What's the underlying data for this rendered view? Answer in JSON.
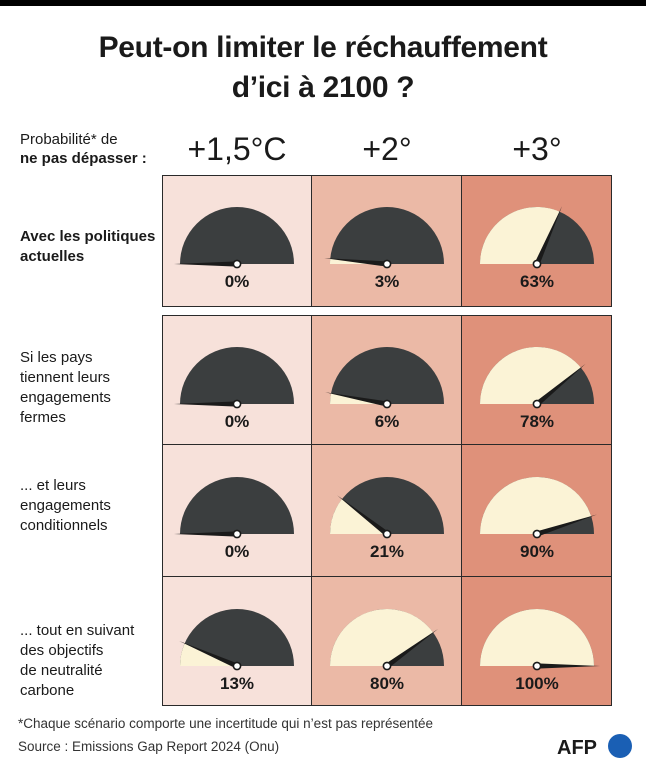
{
  "title_line1": "Peut-on limiter le réchauffement",
  "title_line2": "d’ici à 2100 ?",
  "prob_label_line1": "Probabilité* de",
  "prob_label_line2": "ne pas dépasser :",
  "footnote": "*Chaque scénario comporte une incertitude qui n’est pas représentée",
  "source": "Source : Emissions Gap Report 2024 (Onu)",
  "logo_text": "AFP",
  "colors": {
    "col1_bg": "#f7e1da",
    "col2_bg": "#ebb9a6",
    "col3_bg": "#df917a",
    "gauge_dark": "#3b3e3f",
    "gauge_light": "#fbf3d6",
    "logo_blue": "#1a5fb4"
  },
  "chart_data": {
    "type": "gauge-grid",
    "columns": [
      "+1,5°C",
      "+2°",
      "+3°"
    ],
    "rows": [
      {
        "label_lines": [
          "Avec les politiques",
          "actuelles"
        ],
        "bold": true,
        "values": [
          0,
          3,
          63
        ],
        "labels": [
          "0%",
          "3%",
          "63%"
        ]
      },
      {
        "label_lines": [
          "Si les pays",
          "tiennent leurs",
          "engagements",
          "fermes"
        ],
        "bold": false,
        "values": [
          0,
          6,
          78
        ],
        "labels": [
          "0%",
          "6%",
          "78%"
        ]
      },
      {
        "label_lines": [
          "... et leurs",
          "engagements",
          "conditionnels"
        ],
        "bold": false,
        "values": [
          0,
          21,
          90
        ],
        "labels": [
          "0%",
          "21%",
          "90%"
        ]
      },
      {
        "label_lines": [
          "... tout en suivant",
          "des objectifs",
          "de neutralité",
          "carbone"
        ],
        "bold": false,
        "values": [
          13,
          80,
          100
        ],
        "labels": [
          "13%",
          "80%",
          "100%"
        ]
      }
    ]
  }
}
